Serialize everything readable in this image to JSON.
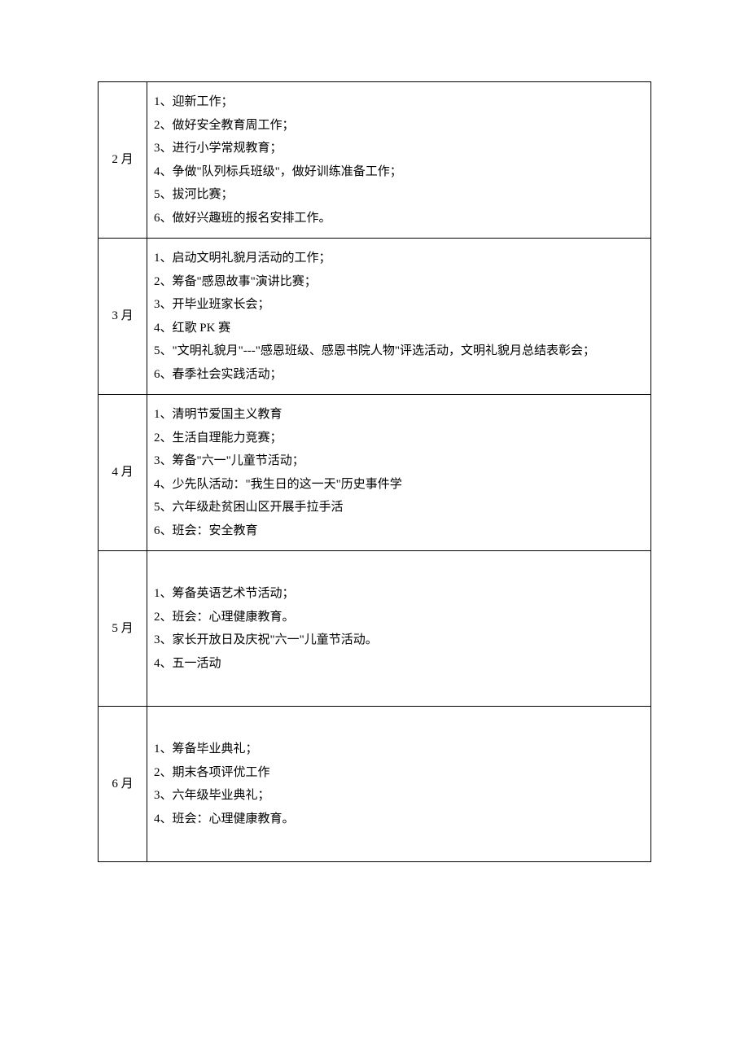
{
  "table": {
    "border_color": "#000000",
    "background_color": "#ffffff",
    "text_color": "#000000",
    "font_size": 15,
    "line_height": 1.9,
    "month_col_width": 60,
    "rows": [
      {
        "month": "2 月",
        "tall": false,
        "items": [
          "1、迎新工作；",
          "2、做好安全教育周工作；",
          "3、进行小学常规教育；",
          "4、争做\"队列标兵班级\"，做好训练准备工作；",
          "5、拔河比赛；",
          "6、做好兴趣班的报名安排工作。"
        ]
      },
      {
        "month": "3 月",
        "tall": false,
        "items": [
          "1、启动文明礼貌月活动的工作；",
          "2、筹备\"感恩故事\"演讲比赛；",
          "3、开毕业班家长会；",
          "4、红歌 PK 赛",
          "5、\"文明礼貌月\"---\"感恩班级、感恩书院人物\"评选活动，文明礼貌月总结表彰会；",
          "6、春季社会实践活动；"
        ]
      },
      {
        "month": "4 月",
        "tall": false,
        "items": [
          "1、清明节爱国主义教育",
          "2、生活自理能力竞赛；",
          "3、筹备\"六一\"儿童节活动；",
          "4、少先队活动：\"我生日的这一天\"历史事件学",
          "5、六年级赴贫困山区开展手拉手活",
          "6、班会：安全教育"
        ]
      },
      {
        "month": "5 月",
        "tall": true,
        "items": [
          "1、筹备英语艺术节活动；",
          "2、班会：心理健康教育。",
          "3、家长开放日及庆祝\"六一\"儿童节活动。",
          "4、五一活动"
        ]
      },
      {
        "month": "6 月",
        "tall": true,
        "items": [
          "1、筹备毕业典礼；",
          "2、期末各项评优工作",
          "3、六年级毕业典礼；",
          "4、班会：心理健康教育。"
        ]
      }
    ]
  }
}
